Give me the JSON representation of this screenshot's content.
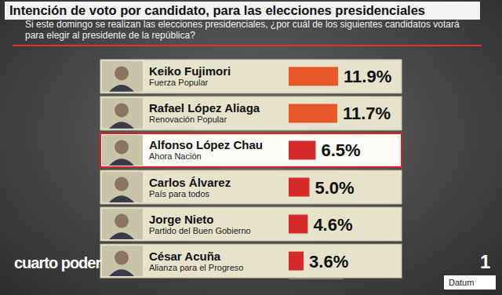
{
  "chart_data": {
    "type": "bar",
    "orientation": "horizontal",
    "title": "Intención de voto por candidato, para las elecciones presidenciales",
    "subtitle": "Si este domingo se realizan las elecciones presidenciales, ¿por cuál de los siguientes candidatos votará para elegir al presidente de la república?",
    "categories": [
      "Keiko Fujimori",
      "Rafael López Aliaga",
      "Alfonso López Chau",
      "Carlos Álvarez",
      "Jorge Nieto",
      "César Acuña"
    ],
    "parties": [
      "Fuerza Popular",
      "Renovación Popular",
      "Ahora Nación",
      "País para todos",
      "Partido del Buen Gobierno",
      "Alianza para el Progreso"
    ],
    "values": [
      11.9,
      11.7,
      6.5,
      5.0,
      4.6,
      3.6
    ],
    "value_labels": [
      "11.9%",
      "11.7%",
      "6.5%",
      "5.0%",
      "4.6%",
      "3.6%"
    ],
    "colors": [
      "#e8572a",
      "#e8572a",
      "#d42a2a",
      "#d42a2a",
      "#d42a2a",
      "#d42a2a"
    ],
    "xlim": [
      0,
      13
    ],
    "xticks": [],
    "data_labels": true,
    "tick_labels": false,
    "grid": false,
    "annotations": [
      "cuarto poder",
      "1",
      "Datum"
    ]
  }
}
